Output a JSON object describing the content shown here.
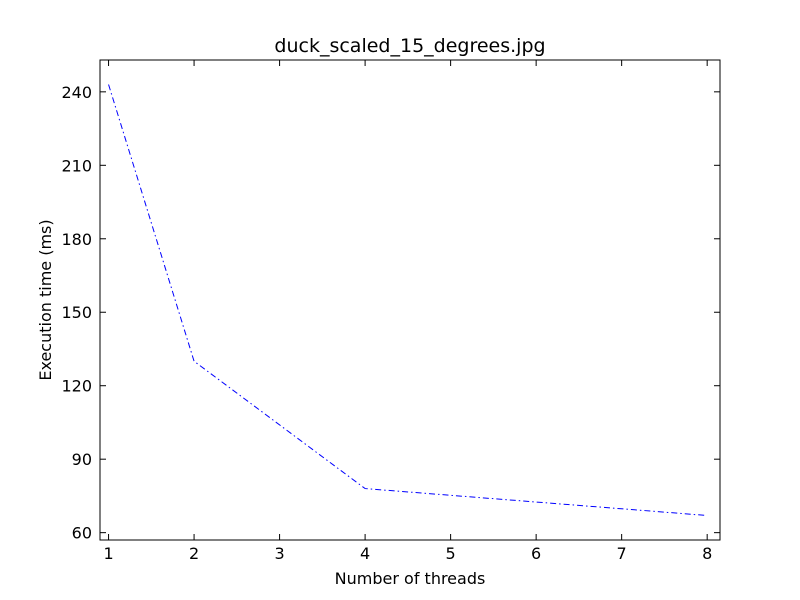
{
  "chart_data": {
    "type": "line",
    "title": "duck_scaled_15_degrees.jpg",
    "xlabel": "Number of threads",
    "ylabel": "Execution time (ms)",
    "xlim": [
      0.9,
      8.15
    ],
    "ylim": [
      57,
      253
    ],
    "xticks": [
      1,
      2,
      3,
      4,
      5,
      6,
      7,
      8
    ],
    "yticks": [
      60,
      90,
      120,
      150,
      180,
      210,
      240
    ],
    "grid": false,
    "series": [
      {
        "line_style": "dash-dot",
        "color": "#0000ff",
        "x": [
          1,
          2,
          4,
          8
        ],
        "y": [
          243,
          130,
          78,
          67
        ]
      }
    ]
  }
}
